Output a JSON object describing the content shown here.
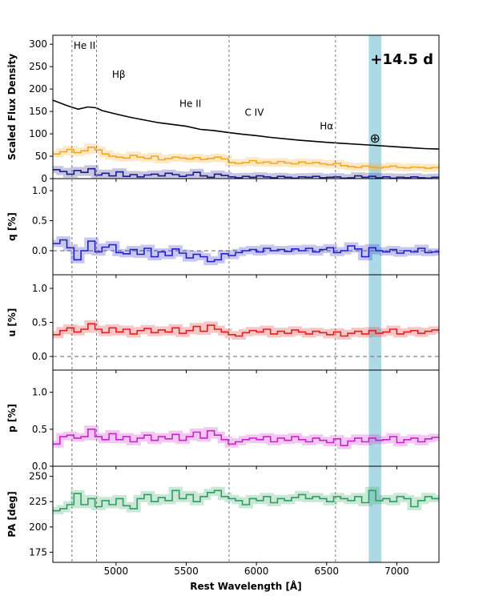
{
  "chart_data": {
    "type": "line",
    "epoch_label": "+14.5 d",
    "xlabel": "Rest Wavelength [Å]",
    "xlim": [
      4550,
      7300
    ],
    "xticks": [
      5000,
      5500,
      6000,
      6500,
      7000
    ],
    "telluric_band": [
      6800,
      6890
    ],
    "telluric_symbol": "⊕",
    "line_markers": [
      {
        "label": "He II",
        "x": 4686
      },
      {
        "label": "Hβ",
        "x": 4861
      },
      {
        "label": "C IV",
        "x": 5805
      },
      {
        "label": "Hα",
        "x": 6563
      }
    ],
    "line_labels": [
      {
        "label": "He II",
        "x": 4686,
        "y": 290
      },
      {
        "label": "Hβ",
        "x": 4960,
        "y": 225
      },
      {
        "label": "He II",
        "x": 5440,
        "y": 160
      },
      {
        "label": "C IV",
        "x": 5905,
        "y": 140
      },
      {
        "label": "Hα",
        "x": 6440,
        "y": 110
      }
    ],
    "panels": [
      {
        "id": "flux",
        "ylabel": "Scaled Flux Density",
        "ylim": [
          0,
          320
        ],
        "yticks": [
          0,
          50,
          100,
          150,
          200,
          250,
          300
        ],
        "series": [
          {
            "color": "#000000",
            "style": "line",
            "x": [
              4550,
              4650,
              4730,
              4800,
              4860,
              4900,
              5000,
              5100,
              5300,
              5500,
              5600,
              5700,
              5800,
              5900,
              6000,
              6100,
              6300,
              6500,
              6600,
              6800,
              7000,
              7100,
              7200,
              7300
            ],
            "y": [
              175,
              163,
              155,
              160,
              158,
              152,
              144,
              137,
              125,
              117,
              110,
              107,
              103,
              99,
              96,
              92,
              86,
              81,
              79,
              75,
              71,
              69,
              67,
              66
            ]
          },
          {
            "color": "#f5a623",
            "style": "step",
            "x": [
              4550,
              4600,
              4650,
              4700,
              4750,
              4800,
              4850,
              4900,
              4950,
              5000,
              5050,
              5100,
              5150,
              5200,
              5250,
              5300,
              5350,
              5400,
              5450,
              5500,
              5550,
              5600,
              5650,
              5700,
              5750,
              5800,
              5850,
              5900,
              5950,
              6000,
              6050,
              6100,
              6150,
              6200,
              6250,
              6300,
              6350,
              6400,
              6450,
              6500,
              6550,
              6600,
              6650,
              6700,
              6750,
              6800,
              6850,
              6900,
              6950,
              7000,
              7050,
              7100,
              7150,
              7200,
              7250
            ],
            "y": [
              55,
              60,
              65,
              58,
              62,
              70,
              64,
              55,
              50,
              48,
              46,
              52,
              48,
              45,
              50,
              42,
              45,
              48,
              46,
              44,
              47,
              43,
              45,
              48,
              44,
              36,
              34,
              36,
              40,
              35,
              37,
              34,
              38,
              35,
              33,
              37,
              34,
              36,
              33,
              31,
              34,
              29,
              27,
              25,
              28,
              26,
              24,
              26,
              28,
              25,
              24,
              26,
              25,
              23,
              25
            ]
          },
          {
            "color": "#1a1a8c",
            "style": "step",
            "x": [
              4550,
              4600,
              4650,
              4700,
              4750,
              4800,
              4850,
              4900,
              4950,
              5000,
              5050,
              5100,
              5150,
              5200,
              5250,
              5300,
              5350,
              5400,
              5450,
              5500,
              5550,
              5600,
              5650,
              5700,
              5750,
              5800,
              5850,
              5900,
              5950,
              6000,
              6050,
              6100,
              6150,
              6200,
              6250,
              6300,
              6350,
              6400,
              6450,
              6500,
              6550,
              6600,
              6650,
              6700,
              6750,
              6800,
              6850,
              6900,
              6950,
              7000,
              7050,
              7100,
              7150,
              7200,
              7250
            ],
            "y": [
              20,
              16,
              10,
              18,
              14,
              22,
              8,
              12,
              6,
              15,
              5,
              9,
              4,
              8,
              10,
              6,
              12,
              9,
              5,
              8,
              14,
              6,
              3,
              10,
              7,
              4,
              2,
              5,
              3,
              6,
              4,
              2,
              5,
              3,
              1,
              4,
              3,
              5,
              2,
              3,
              4,
              1,
              2,
              6,
              3,
              5,
              2,
              4,
              1,
              3,
              2,
              4,
              2,
              1,
              3
            ]
          }
        ]
      },
      {
        "id": "q",
        "ylabel": "q [%]",
        "ylim": [
          -0.4,
          1.2
        ],
        "yticks": [
          0.0,
          0.5,
          1.0
        ],
        "zero_line": true,
        "series": [
          {
            "color": "#1f1fcc",
            "style": "step",
            "x": [
              4550,
              4600,
              4650,
              4700,
              4750,
              4800,
              4850,
              4900,
              4950,
              5000,
              5050,
              5100,
              5150,
              5200,
              5250,
              5300,
              5350,
              5400,
              5450,
              5500,
              5550,
              5600,
              5650,
              5700,
              5750,
              5800,
              5850,
              5900,
              5950,
              6000,
              6050,
              6100,
              6150,
              6200,
              6250,
              6300,
              6350,
              6400,
              6450,
              6500,
              6550,
              6600,
              6650,
              6700,
              6750,
              6800,
              6850,
              6900,
              6950,
              7000,
              7050,
              7100,
              7150,
              7200,
              7250
            ],
            "y": [
              0.12,
              0.18,
              0.05,
              -0.15,
              0.0,
              0.16,
              -0.02,
              0.06,
              0.1,
              -0.03,
              -0.05,
              0.02,
              -0.06,
              0.04,
              -0.1,
              -0.02,
              -0.08,
              0.03,
              -0.04,
              -0.12,
              -0.06,
              -0.1,
              -0.18,
              -0.15,
              -0.05,
              -0.08,
              -0.03,
              0.0,
              0.02,
              -0.02,
              0.04,
              0.0,
              0.02,
              -0.01,
              0.03,
              0.0,
              0.04,
              -0.02,
              0.02,
              0.05,
              -0.03,
              0.0,
              0.08,
              0.03,
              -0.1,
              0.05,
              0.0,
              -0.02,
              0.02,
              -0.04,
              0.0,
              -0.02,
              0.04,
              -0.03,
              -0.02
            ]
          }
        ]
      },
      {
        "id": "u",
        "ylabel": "u [%]",
        "ylim": [
          -0.2,
          1.2
        ],
        "yticks": [
          0.0,
          0.5,
          1.0
        ],
        "zero_line": true,
        "series": [
          {
            "color": "#e02020",
            "style": "step",
            "x": [
              4550,
              4600,
              4650,
              4700,
              4750,
              4800,
              4850,
              4900,
              4950,
              5000,
              5050,
              5100,
              5150,
              5200,
              5250,
              5300,
              5350,
              5400,
              5450,
              5500,
              5550,
              5600,
              5650,
              5700,
              5750,
              5800,
              5850,
              5900,
              5950,
              6000,
              6050,
              6100,
              6150,
              6200,
              6250,
              6300,
              6350,
              6400,
              6450,
              6500,
              6550,
              6600,
              6650,
              6700,
              6750,
              6800,
              6850,
              6900,
              6950,
              7000,
              7050,
              7100,
              7150,
              7200,
              7250
            ],
            "y": [
              0.32,
              0.38,
              0.42,
              0.36,
              0.4,
              0.48,
              0.4,
              0.35,
              0.42,
              0.36,
              0.4,
              0.33,
              0.38,
              0.41,
              0.35,
              0.39,
              0.36,
              0.42,
              0.34,
              0.38,
              0.44,
              0.37,
              0.46,
              0.4,
              0.36,
              0.32,
              0.3,
              0.35,
              0.38,
              0.36,
              0.4,
              0.33,
              0.37,
              0.34,
              0.39,
              0.36,
              0.33,
              0.37,
              0.35,
              0.32,
              0.36,
              0.3,
              0.34,
              0.37,
              0.33,
              0.38,
              0.34,
              0.36,
              0.4,
              0.33,
              0.36,
              0.38,
              0.34,
              0.37,
              0.39
            ]
          }
        ]
      },
      {
        "id": "p",
        "ylabel": "p [%]",
        "ylim": [
          0.0,
          1.3
        ],
        "yticks": [
          0.0,
          0.5,
          1.0
        ],
        "zero_line": false,
        "series": [
          {
            "color": "#cc22cc",
            "style": "step",
            "x": [
              4550,
              4600,
              4650,
              4700,
              4750,
              4800,
              4850,
              4900,
              4950,
              5000,
              5050,
              5100,
              5150,
              5200,
              5250,
              5300,
              5350,
              5400,
              5450,
              5500,
              5550,
              5600,
              5650,
              5700,
              5750,
              5800,
              5850,
              5900,
              5950,
              6000,
              6050,
              6100,
              6150,
              6200,
              6250,
              6300,
              6350,
              6400,
              6450,
              6500,
              6550,
              6600,
              6650,
              6700,
              6750,
              6800,
              6850,
              6900,
              6950,
              7000,
              7050,
              7100,
              7150,
              7200,
              7250
            ],
            "y": [
              0.3,
              0.4,
              0.42,
              0.38,
              0.4,
              0.5,
              0.4,
              0.36,
              0.44,
              0.36,
              0.4,
              0.33,
              0.38,
              0.42,
              0.35,
              0.4,
              0.37,
              0.43,
              0.35,
              0.4,
              0.46,
              0.38,
              0.48,
              0.42,
              0.36,
              0.3,
              0.33,
              0.36,
              0.38,
              0.36,
              0.4,
              0.33,
              0.38,
              0.35,
              0.4,
              0.36,
              0.33,
              0.38,
              0.35,
              0.32,
              0.37,
              0.28,
              0.34,
              0.38,
              0.33,
              0.38,
              0.35,
              0.36,
              0.4,
              0.32,
              0.36,
              0.38,
              0.33,
              0.37,
              0.39
            ]
          }
        ]
      },
      {
        "id": "pa",
        "ylabel": "PA [deg]",
        "ylim": [
          165,
          260
        ],
        "yticks": [
          175,
          200,
          225,
          250
        ],
        "zero_line": false,
        "series": [
          {
            "color": "#2e9e5e",
            "style": "step",
            "x": [
              4550,
              4600,
              4650,
              4700,
              4750,
              4800,
              4850,
              4900,
              4950,
              5000,
              5050,
              5100,
              5150,
              5200,
              5250,
              5300,
              5350,
              5400,
              5450,
              5500,
              5550,
              5600,
              5650,
              5700,
              5750,
              5800,
              5850,
              5900,
              5950,
              6000,
              6050,
              6100,
              6150,
              6200,
              6250,
              6300,
              6350,
              6400,
              6450,
              6500,
              6550,
              6600,
              6650,
              6700,
              6750,
              6800,
              6850,
              6900,
              6950,
              7000,
              7050,
              7100,
              7150,
              7200,
              7250
            ],
            "y": [
              216,
              218,
              222,
              233,
              222,
              228,
              220,
              226,
              222,
              228,
              221,
              218,
              228,
              232,
              225,
              229,
              226,
              236,
              228,
              232,
              225,
              230,
              234,
              236,
              230,
              228,
              226,
              222,
              228,
              226,
              230,
              224,
              228,
              226,
              229,
              232,
              228,
              230,
              228,
              225,
              230,
              228,
              226,
              230,
              224,
              236,
              226,
              228,
              225,
              230,
              228,
              220,
              226,
              230,
              228
            ]
          }
        ]
      }
    ]
  }
}
